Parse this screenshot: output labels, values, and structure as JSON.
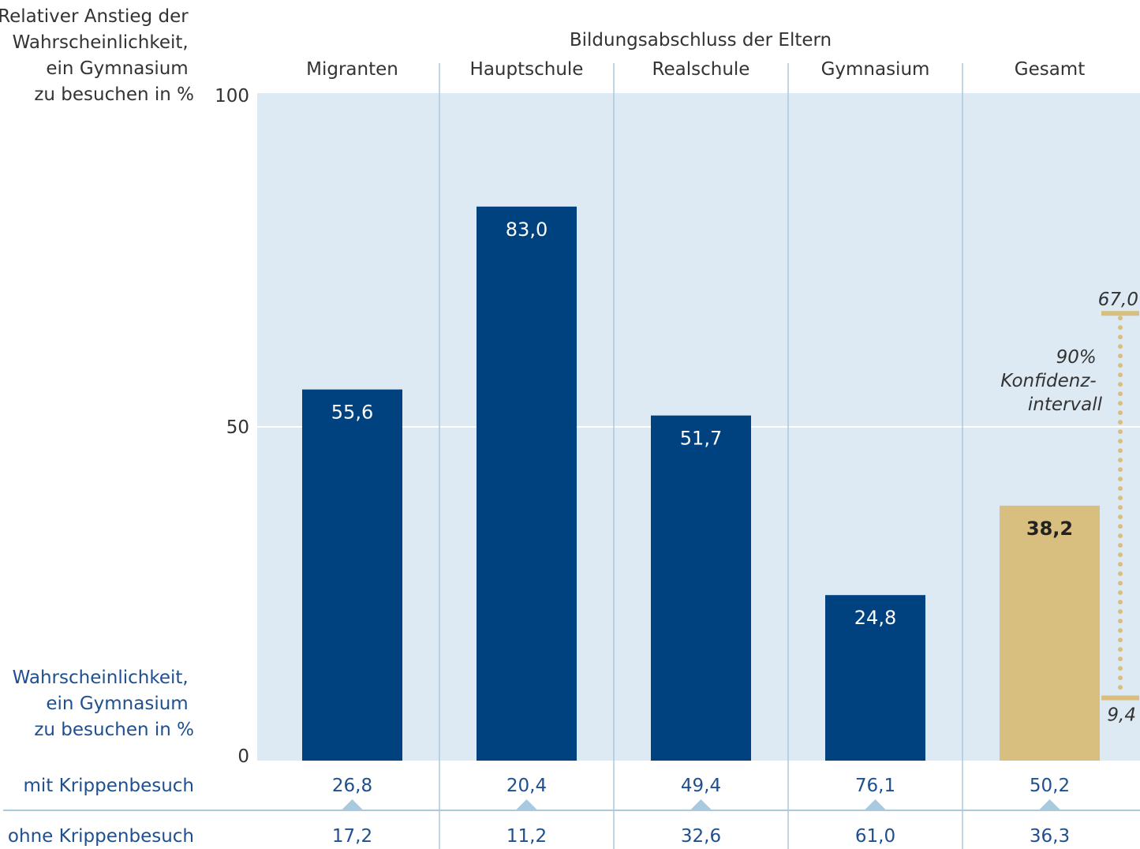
{
  "chart_data": {
    "type": "bar",
    "yaxis_label": [
      "Relativer Anstieg der",
      "Wahrscheinlichkeit,",
      "ein Gymnasium",
      "zu besuchen in %"
    ],
    "group_title": "Bildungsabschluss der Eltern",
    "y_ticks": [
      "100",
      "50",
      "0"
    ],
    "ylim": [
      0,
      100
    ],
    "categories": [
      "Migranten",
      "Hauptschule",
      "Realschule",
      "Gymnasium",
      "Gesamt"
    ],
    "values": [
      55.6,
      83.0,
      51.7,
      24.8,
      38.2
    ],
    "value_labels": [
      "55,6",
      "83,0",
      "51,7",
      "24,8",
      "38,2"
    ],
    "colors": {
      "bar": "#00427f",
      "highlight": "#d9bf7f",
      "panel": "#ddeaf3",
      "separator": "#a9c9de",
      "blue_text": "#1f4f8f",
      "marker": "#a9c9de"
    },
    "confidence_interval": {
      "category": "Gesamt",
      "upper": 67.0,
      "lower": 9.4,
      "upper_label": "67,0",
      "lower_label": "9,4",
      "label": [
        "90%",
        "Konfidenz-",
        "intervall"
      ]
    },
    "probability_label": [
      "Wahrscheinlichkeit,",
      "ein Gymnasium",
      "zu besuchen in %"
    ],
    "rows": [
      {
        "label": "mit Krippenbesuch",
        "values": [
          "26,8",
          "20,4",
          "49,4",
          "76,1",
          "50,2"
        ]
      },
      {
        "label": "ohne Krippenbesuch",
        "values": [
          "17,2",
          "11,2",
          "32,6",
          "61,0",
          "36,3"
        ]
      }
    ]
  }
}
